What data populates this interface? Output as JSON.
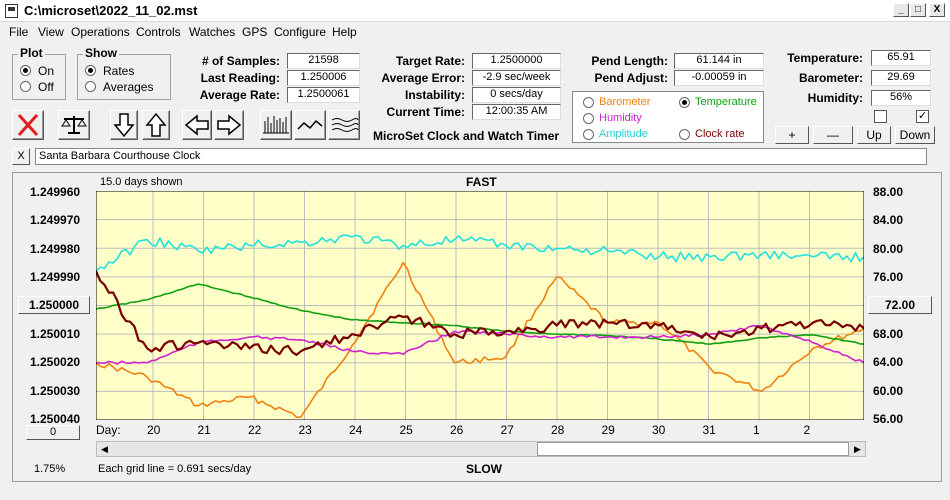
{
  "window": {
    "title": "C:\\microset\\2022_11_02.mst",
    "min_glyph": "_",
    "max_glyph": "□",
    "close_glyph": "X"
  },
  "menu": [
    "File",
    "View",
    "Operations",
    "Controls",
    "Watches",
    "GPS",
    "Configure",
    "Help"
  ],
  "plot_group": {
    "title": "Plot",
    "on_label": "On",
    "off_label": "Off",
    "selected": "On"
  },
  "show_group": {
    "title": "Show",
    "rates_label": "Rates",
    "averages_label": "Averages",
    "selected": "Rates"
  },
  "stats": {
    "samples_label": "# of Samples:",
    "samples": "21598",
    "last_label": "Last Reading:",
    "last": "1.250006",
    "avg_label": "Average Rate:",
    "avg": "1.2500061"
  },
  "rates": {
    "target_label": "Target Rate:",
    "target": "1.2500000",
    "error_label": "Average Error:",
    "error": "-2.9 sec/week",
    "instab_label": "Instability:",
    "instab": "0 secs/day",
    "time_label": "Current Time:",
    "time": "12:00:35 AM"
  },
  "app_name": "MicroSet Clock and Watch Timer",
  "pend": {
    "length_label": "Pend Length:",
    "length": "61.144 in",
    "adjust_label": "Pend Adjust:",
    "adjust": "-0.00059 in"
  },
  "sensor_select": {
    "barometer": "Barometer",
    "temperature": "Temperature",
    "humidity": "Humidity",
    "amplitude": "Amplitude",
    "clock_rate": "Clock rate",
    "selected": "Temperature"
  },
  "env": {
    "temp_label": "Temperature:",
    "temp": "65.91",
    "baro_label": "Barometer:",
    "baro": "29.69",
    "hum_label": "Humidity:",
    "hum": "56%",
    "check1": false,
    "check2": true,
    "check2_glyph": "✓"
  },
  "env_buttons": {
    "plus": "+",
    "minus": "—",
    "up": "Up",
    "down": "Down"
  },
  "clock_name": "Santa Barbara Courthouse Clock",
  "clock_close": "X",
  "plot": {
    "days_shown": "15.0 days shown",
    "fast": "FAST",
    "slow": "SLOW",
    "grid_note": "Each grid line = 0.691 secs/day",
    "percent": "1.75%",
    "day_label": "Day:",
    "left_center_btn": "1.250000",
    "left_bottom_btn": "0",
    "right_center_btn": "72.00"
  },
  "colors": {
    "barometer": "#f08010",
    "temperature": "#10a010",
    "humidity": "#d020d0",
    "amplitude": "#20e0e0",
    "clock_rate": "#7a0000",
    "plot_bg": "#ffffc8"
  },
  "chart_data": {
    "type": "line",
    "y_left_ticks": [
      "1.249960",
      "1.249970",
      "1.249980",
      "1.249990",
      "1.250000",
      "1.250010",
      "1.250020",
      "1.250030",
      "1.250040"
    ],
    "y_right_ticks": [
      "88.00",
      "84.00",
      "80.00",
      "76.00",
      "72.00",
      "68.00",
      "64.00",
      "60.00",
      "56.00"
    ],
    "x_ticks": [
      "20",
      "21",
      "22",
      "23",
      "24",
      "25",
      "26",
      "27",
      "28",
      "29",
      "30",
      "31",
      "1",
      "2"
    ],
    "ylim_left": [
      1.24996,
      1.25004
    ],
    "ylim_right": [
      56,
      88
    ],
    "x": [
      0,
      1,
      2,
      3,
      4,
      5,
      6,
      7,
      8,
      9,
      10,
      11,
      12,
      13,
      14,
      15
    ],
    "series": [
      {
        "name": "Amplitude",
        "color": "#20e0e0",
        "axis": "left",
        "values": [
          1.249988,
          1.249977,
          1.249981,
          1.249979,
          1.249978,
          1.249976,
          1.249979,
          1.249977,
          1.249979,
          1.24998,
          1.249981,
          1.249983,
          1.249983,
          1.249982,
          1.249983,
          1.249983
        ]
      },
      {
        "name": "Temperature",
        "color": "#10a010",
        "axis": "right",
        "values": [
          71.5,
          72.8,
          75.0,
          73.2,
          71.3,
          70.0,
          69.6,
          69.2,
          68.4,
          68.0,
          67.8,
          67.3,
          66.6,
          67.5,
          67.9,
          66.6
        ]
      },
      {
        "name": "Humidity",
        "color": "#d020d0",
        "axis": "left",
        "values": [
          1.25002,
          1.25002,
          1.250013,
          1.250011,
          1.250012,
          1.250016,
          1.250017,
          1.250009,
          1.25001,
          1.250011,
          1.250011,
          1.250011,
          1.25001,
          1.250007,
          1.250013,
          1.25002
        ]
      },
      {
        "name": "Barometer",
        "color": "#f08010",
        "axis": "left",
        "values": [
          1.25002,
          1.250025,
          1.250035,
          1.250032,
          1.250039,
          1.250014,
          1.249985,
          1.25002,
          1.250018,
          1.24999,
          1.250006,
          1.250006,
          1.250022,
          1.25003,
          1.250015,
          1.250008
        ]
      },
      {
        "name": "Clock rate",
        "color": "#7a0000",
        "axis": "left",
        "values": [
          1.249988,
          1.250015,
          1.250013,
          1.250015,
          1.250016,
          1.25001,
          1.250004,
          1.25001,
          1.250009,
          1.250007,
          1.250006,
          1.250007,
          1.250011,
          1.250008,
          1.250006,
          1.250008
        ]
      }
    ]
  }
}
